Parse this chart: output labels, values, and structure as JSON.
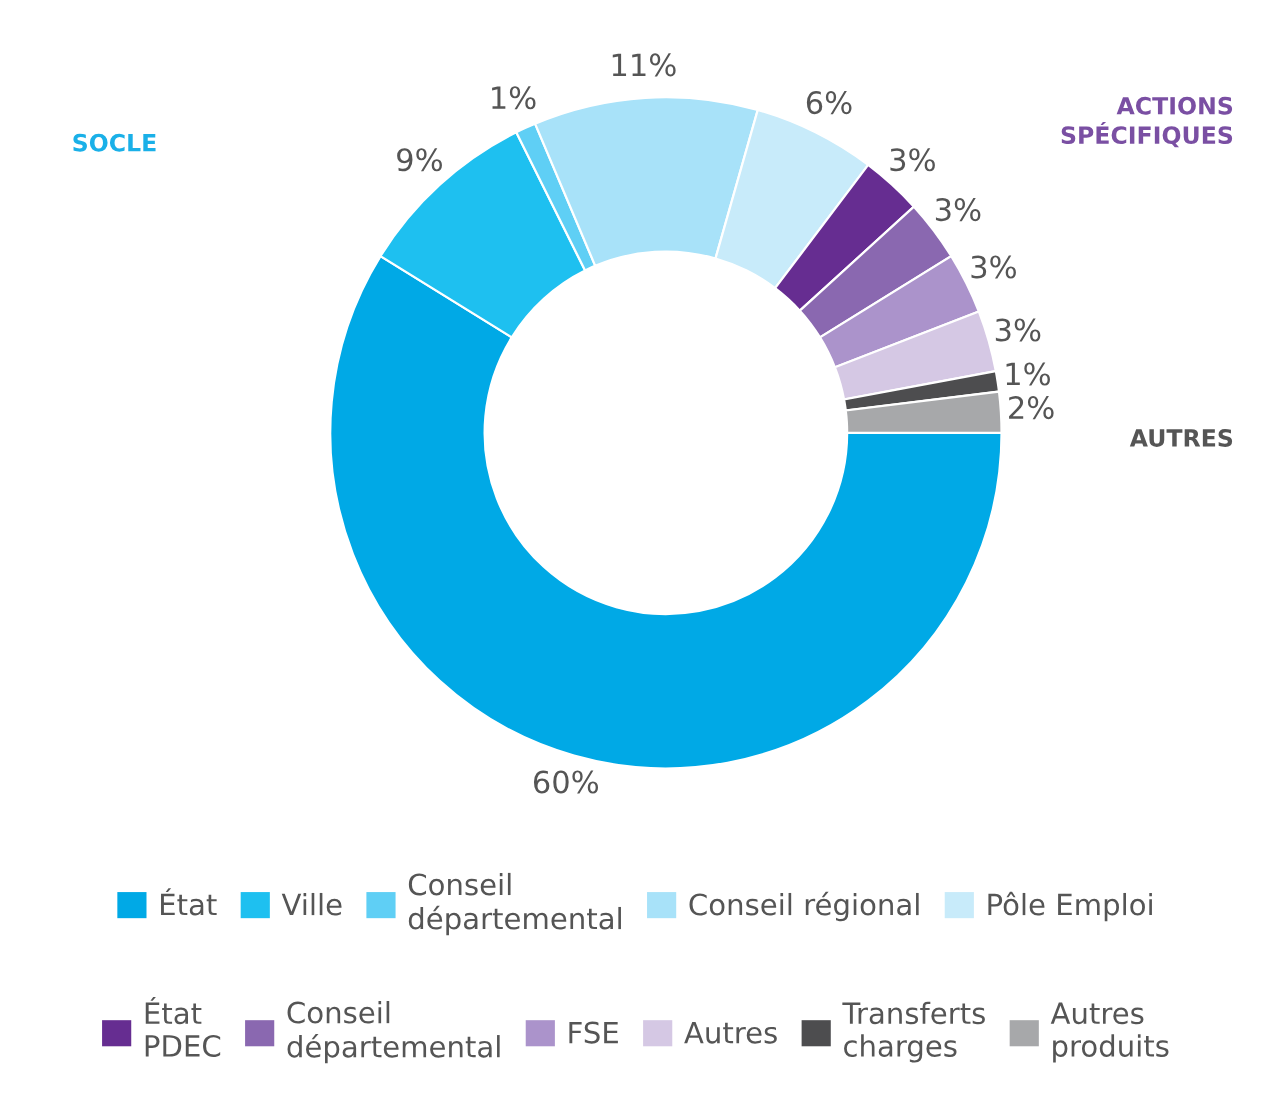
{
  "chart_data": {
    "type": "donut",
    "categories": [
      "État",
      "Ville",
      "Conseil\ndépartemental",
      "Conseil régional",
      "Pôle Emploi",
      "État\nPDEC",
      "Conseil\ndépartemental",
      "FSE",
      "Autres",
      "Transferts\ncharges",
      "Autres\nproduits"
    ],
    "values": [
      60,
      9,
      1,
      11,
      6,
      3,
      3,
      3,
      3,
      1,
      2
    ],
    "value_labels": [
      "60%",
      "9%",
      "1%",
      "11%",
      "6%",
      "3%",
      "3%",
      "3%",
      "3%",
      "1%",
      "2%"
    ],
    "colors": [
      "#00a9e6",
      "#1ec0f0",
      "#5fcff5",
      "#a8e2f9",
      "#c8ebfa",
      "#662d91",
      "#8a68b0",
      "#ab93cb",
      "#d5c8e4",
      "#4d4d4f",
      "#a7a8aa"
    ],
    "annotations": [
      "SOCLE",
      "ACTIONS\nSPÉCIFIQUES",
      "AUTRES"
    ],
    "legend": "bottom"
  }
}
